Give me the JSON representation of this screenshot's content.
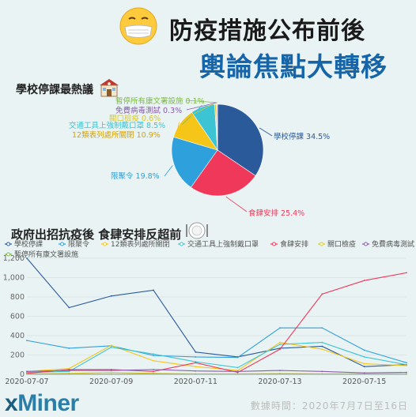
{
  "title": {
    "line1": "防疫措施公布前後",
    "line2": "輿論焦點大轉移"
  },
  "section_titles": {
    "pie": "學校停課最熱議",
    "line": "政府出招抗疫後 食肆安排反超前"
  },
  "icons": {
    "mask": "face-with-mask-icon",
    "school": "school-icon",
    "plate": "plate-cutlery-icon"
  },
  "colors": {
    "學校停課": "#2a5a9a",
    "限聚令": "#2ea0dc",
    "12類表列處所關閉": "#f5c518",
    "交通工具上強制戴口罩": "#3cc4d4",
    "食肆安排": "#f0385a",
    "關口檢疫": "#d8c832",
    "免費病毒測試": "#8a5ab0",
    "暫停所有康文署設施": "#7dbb42"
  },
  "chart_data": [
    {
      "type": "pie",
      "slices": [
        {
          "label": "學校停課",
          "value": 34.5,
          "text": "學校停課 34.5%"
        },
        {
          "label": "食肆安排",
          "value": 25.4,
          "text": "食肆安排 25.4%"
        },
        {
          "label": "限聚令",
          "value": 19.8,
          "text": "限聚令 19.8%"
        },
        {
          "label": "12類表列處所關閉",
          "value": 10.9,
          "text": "12類表列處所關閉 10.9%"
        },
        {
          "label": "交通工具上強制戴口罩",
          "value": 8.5,
          "text": "交通工具上強制戴口罩 8.5%"
        },
        {
          "label": "關口檢疫",
          "value": 0.6,
          "text": "關口檢疫 0.6%"
        },
        {
          "label": "免費病毒測試",
          "value": 0.3,
          "text": "免費病毒測試 0.3%"
        },
        {
          "label": "暫停所有康文署設施",
          "value": 0.1,
          "text": "暫停所有康文署設施 0.1%"
        }
      ]
    },
    {
      "type": "line",
      "x": [
        "2020-07-07",
        "2020-07-08",
        "2020-07-09",
        "2020-07-10",
        "2020-07-11",
        "2020-07-12",
        "2020-07-13",
        "2020-07-14",
        "2020-07-15",
        "2020-07-16"
      ],
      "x_ticks": [
        "2020-07-07",
        "2020-07-09",
        "2020-07-11",
        "2020-07-13",
        "2020-07-15"
      ],
      "ylim": [
        0,
        1200
      ],
      "y_ticks": [
        "0",
        "200",
        "400",
        "600",
        "800",
        "1,000",
        "1,200"
      ],
      "legend_position": "top",
      "series": [
        {
          "name": "學校停課",
          "values": [
            1200,
            690,
            810,
            870,
            230,
            180,
            270,
            290,
            80,
            100
          ]
        },
        {
          "name": "限聚令",
          "values": [
            350,
            270,
            295,
            195,
            180,
            175,
            480,
            480,
            250,
            120
          ]
        },
        {
          "name": "12類表列處所關閉",
          "values": [
            30,
            60,
            300,
            140,
            80,
            40,
            330,
            260,
            110,
            90
          ]
        },
        {
          "name": "交通工具上強制戴口罩",
          "values": [
            20,
            30,
            280,
            210,
            130,
            70,
            310,
            330,
            180,
            100
          ]
        },
        {
          "name": "食肆安排",
          "values": [
            10,
            50,
            50,
            30,
            120,
            20,
            260,
            830,
            970,
            1050
          ]
        },
        {
          "name": "關口檢疫",
          "values": [
            5,
            10,
            20,
            10,
            5,
            5,
            8,
            5,
            5,
            4
          ]
        },
        {
          "name": "免費病毒測試",
          "values": [
            30,
            40,
            40,
            50,
            35,
            30,
            40,
            30,
            15,
            20
          ]
        },
        {
          "name": "暫停所有康文署設施",
          "values": [
            2,
            3,
            3,
            5,
            2,
            2,
            5,
            3,
            2,
            2
          ]
        }
      ]
    }
  ],
  "brand": {
    "x": "x",
    "rest": "Miner"
  },
  "footer": "數據時間：2020年7月7日至16日"
}
